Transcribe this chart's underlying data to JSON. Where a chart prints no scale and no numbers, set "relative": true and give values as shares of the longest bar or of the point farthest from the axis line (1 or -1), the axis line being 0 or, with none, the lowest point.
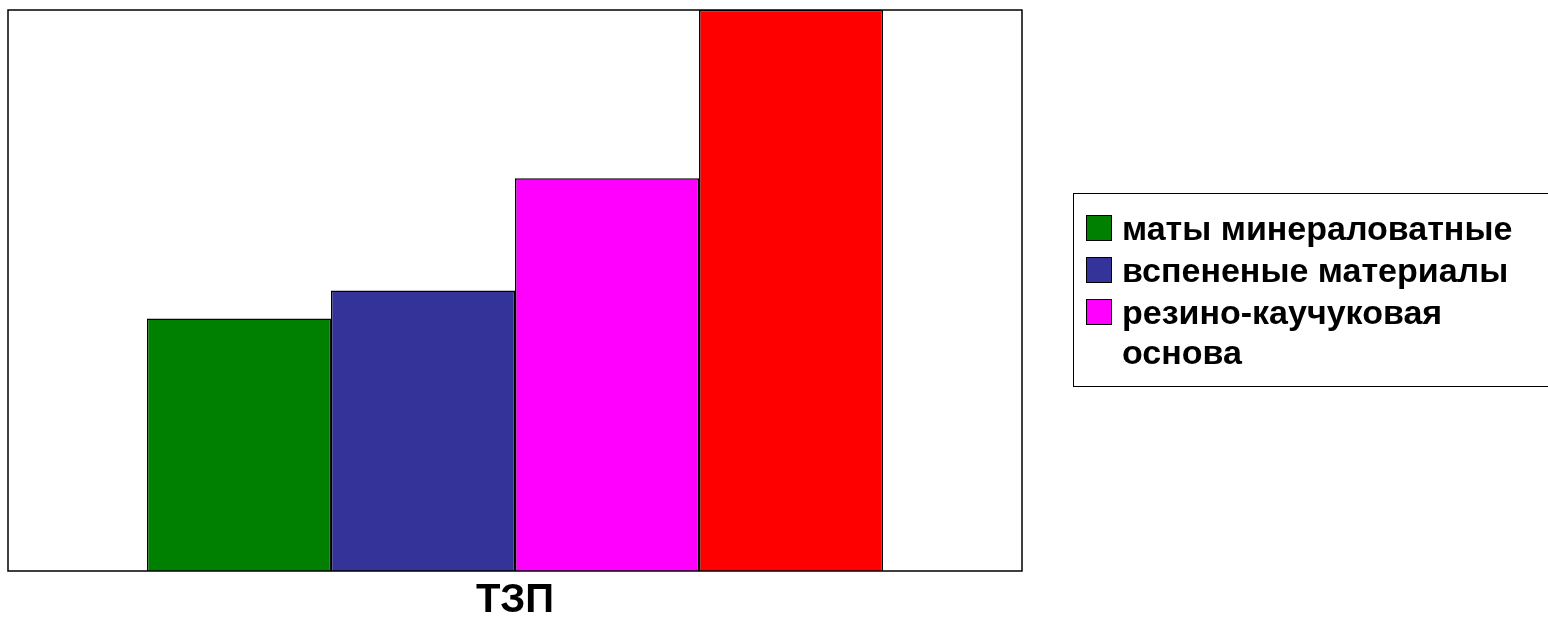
{
  "chart_data": {
    "type": "bar",
    "xlabel": "ТЗП",
    "categories": [
      null
    ],
    "relative": true,
    "legend": "right",
    "grid": false,
    "series": [
      {
        "name": "маты минераловатные",
        "color": "#008000",
        "values": [
          0.45
        ]
      },
      {
        "name": "вспененые материалы",
        "color": "#333399",
        "values": [
          0.5
        ]
      },
      {
        "name": "резино-каучуковая основа",
        "color": "#ff00ff",
        "values": [
          0.7
        ]
      },
      {
        "color": "#ff0000",
        "values": [
          1
        ]
      }
    ]
  }
}
